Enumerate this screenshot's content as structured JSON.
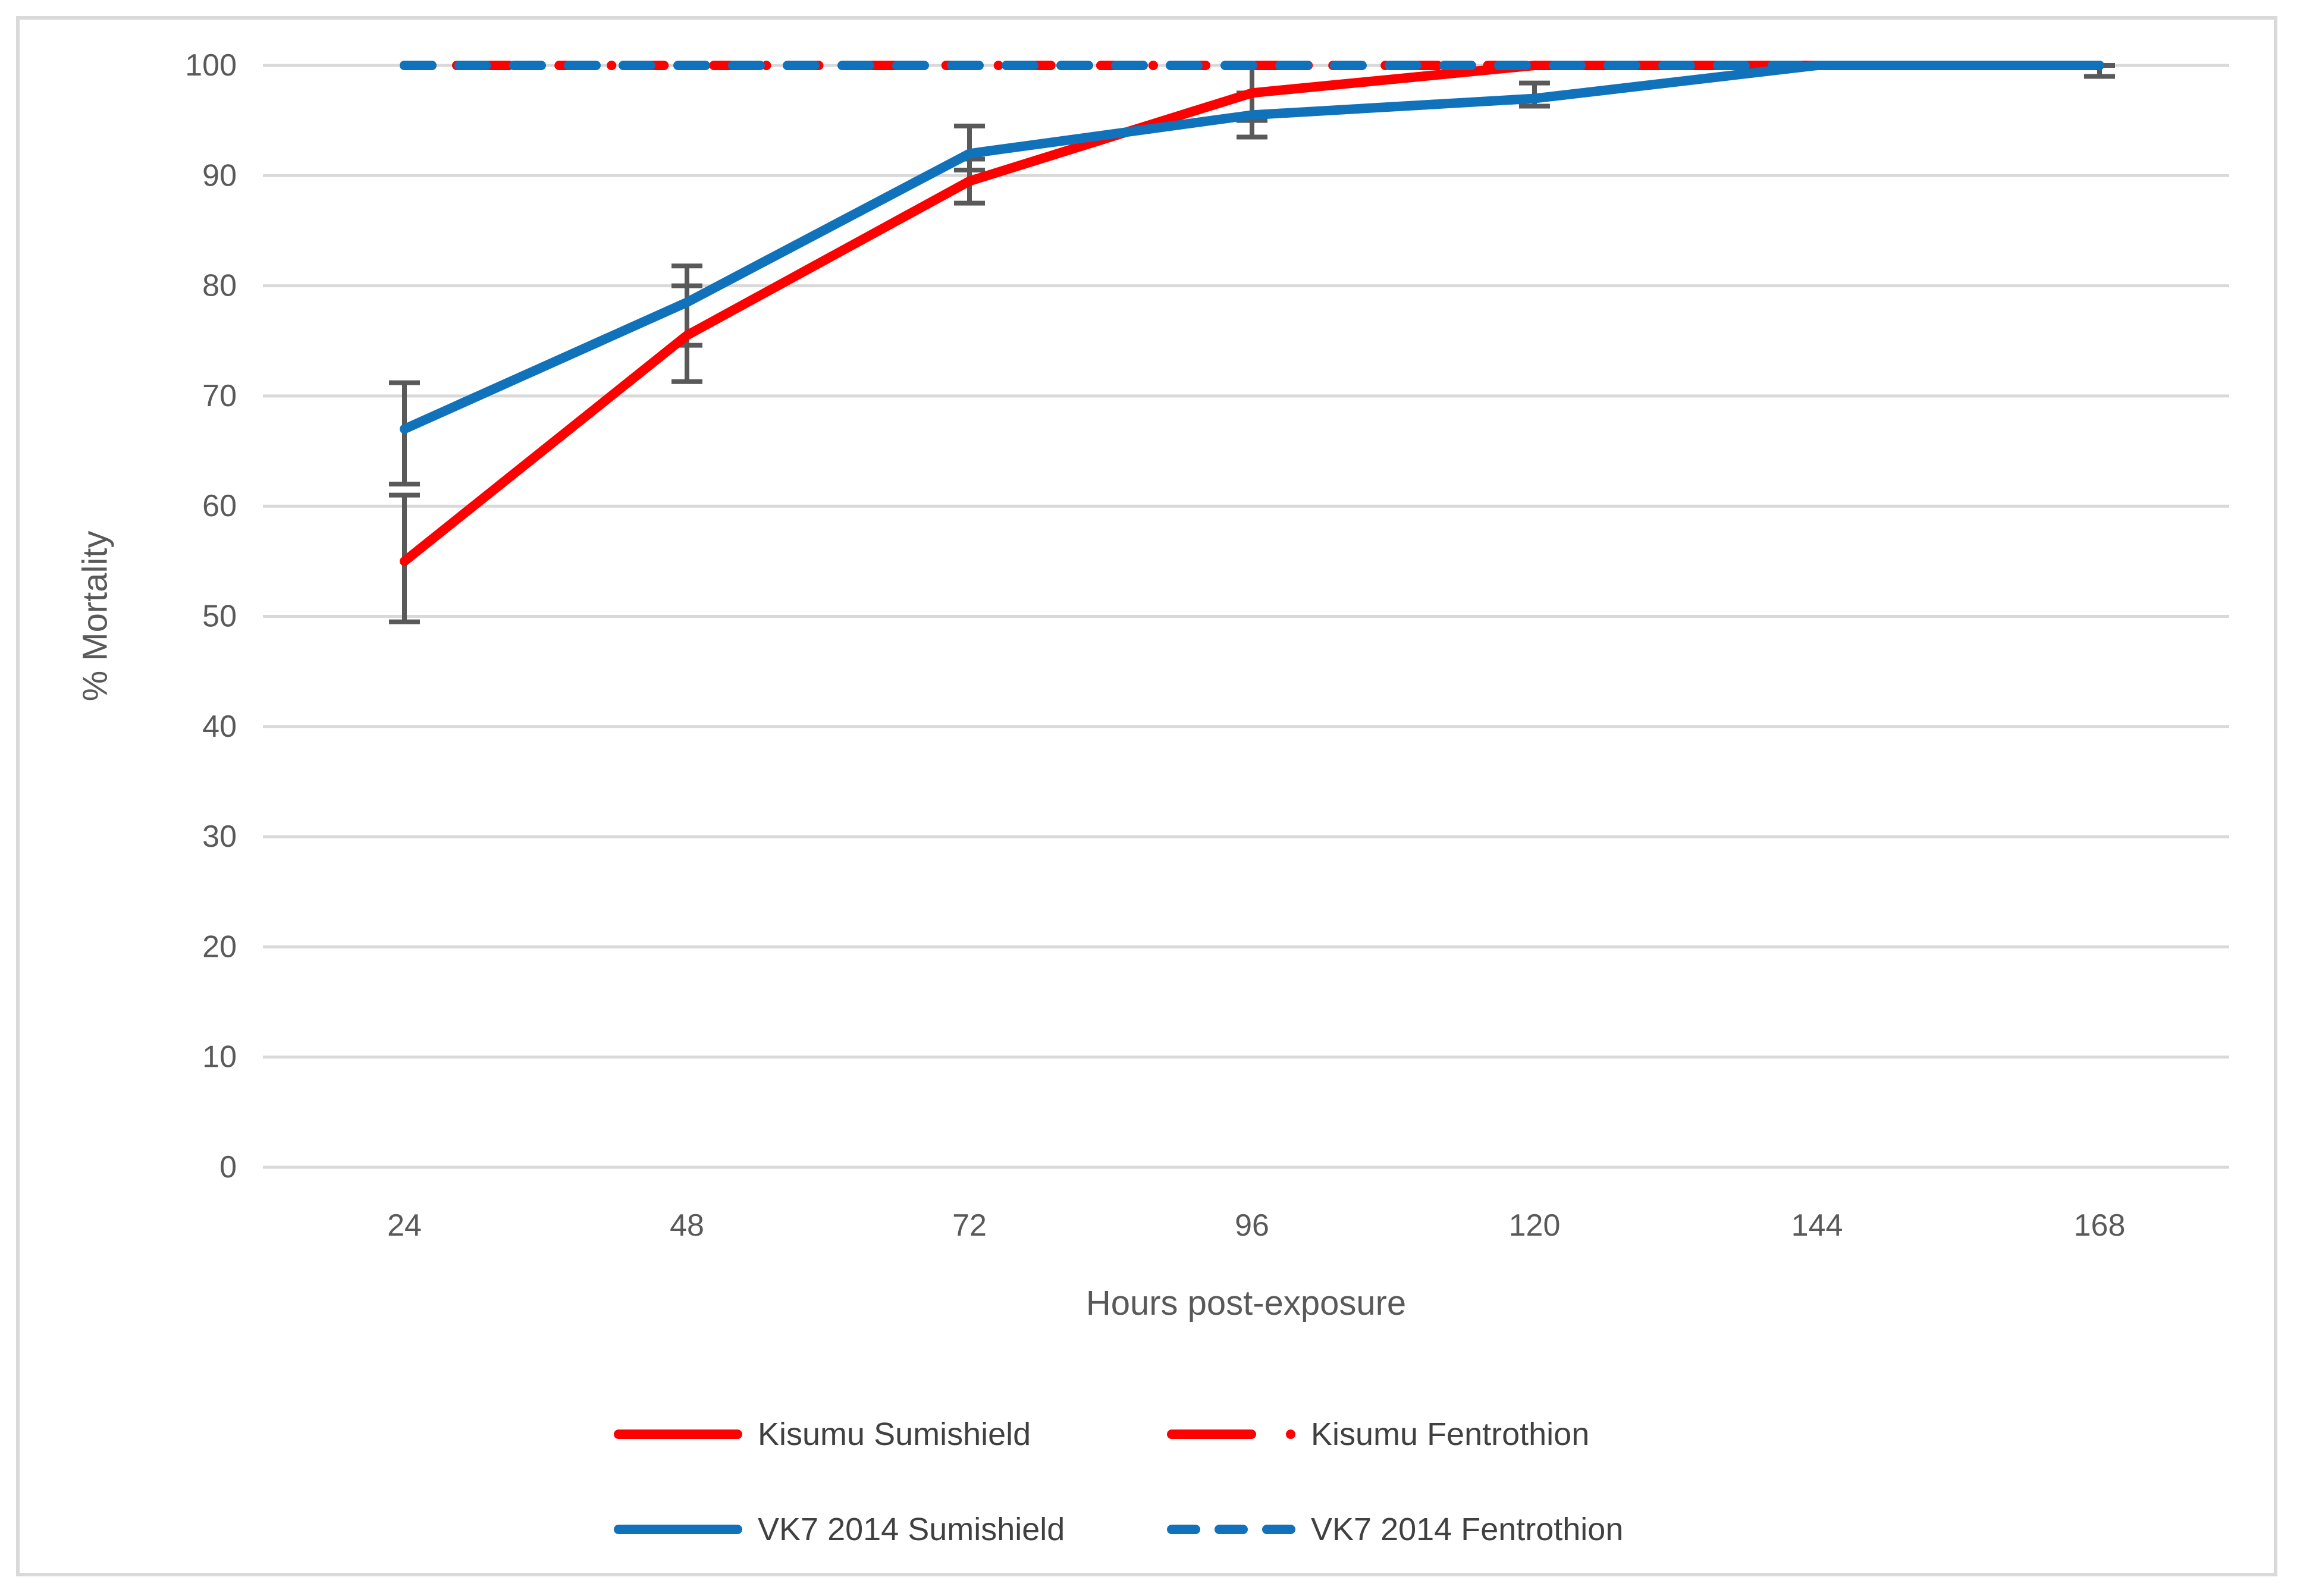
{
  "figure": {
    "background": "#FFFFFF",
    "border_color": "#D9D9D9"
  },
  "chart_data": {
    "type": "line",
    "title": "",
    "xlabel": "Hours post-exposure",
    "ylabel": "% Mortality",
    "x": [
      24,
      48,
      72,
      96,
      120,
      144,
      168
    ],
    "ylim": [
      0,
      100
    ],
    "yticks": [
      0,
      10,
      20,
      30,
      40,
      50,
      60,
      70,
      80,
      90,
      100
    ],
    "grid": true,
    "legend_position": "bottom",
    "gridline_color": "#D9D9D9",
    "axis_text_color": "#595959",
    "error_bar_color": "#595959",
    "series": [
      {
        "name": "Kisumu Sumishield",
        "color": "#FF0000",
        "style": "solid",
        "values": [
          55,
          75.5,
          89.5,
          97.5,
          100,
          100,
          100
        ],
        "error_low": [
          49.5,
          71.3,
          87.5,
          95,
          null,
          null,
          null
        ],
        "error_high": [
          61,
          80,
          91.5,
          100,
          null,
          null,
          null
        ]
      },
      {
        "name": "Kisumu Fentrothion",
        "color": "#FF0000",
        "style": "dash-dot",
        "values": [
          100,
          100,
          100,
          100,
          100,
          100,
          100
        ],
        "error_low": null,
        "error_high": null
      },
      {
        "name": "VK7 2014 Sumishield",
        "color": "#1072BA",
        "style": "solid",
        "values": [
          67,
          78.5,
          92,
          95.5,
          97,
          100,
          100
        ],
        "error_low": [
          62,
          74.6,
          90.5,
          93.5,
          96.3,
          null,
          99
        ],
        "error_high": [
          71.2,
          81.8,
          94.5,
          97.5,
          98.4,
          null,
          100
        ]
      },
      {
        "name": "VK7 2014 Fentrothion",
        "color": "#1072BA",
        "style": "dashed",
        "values": [
          100,
          100,
          100,
          100,
          100,
          100,
          100
        ],
        "error_low": null,
        "error_high": null
      }
    ]
  }
}
